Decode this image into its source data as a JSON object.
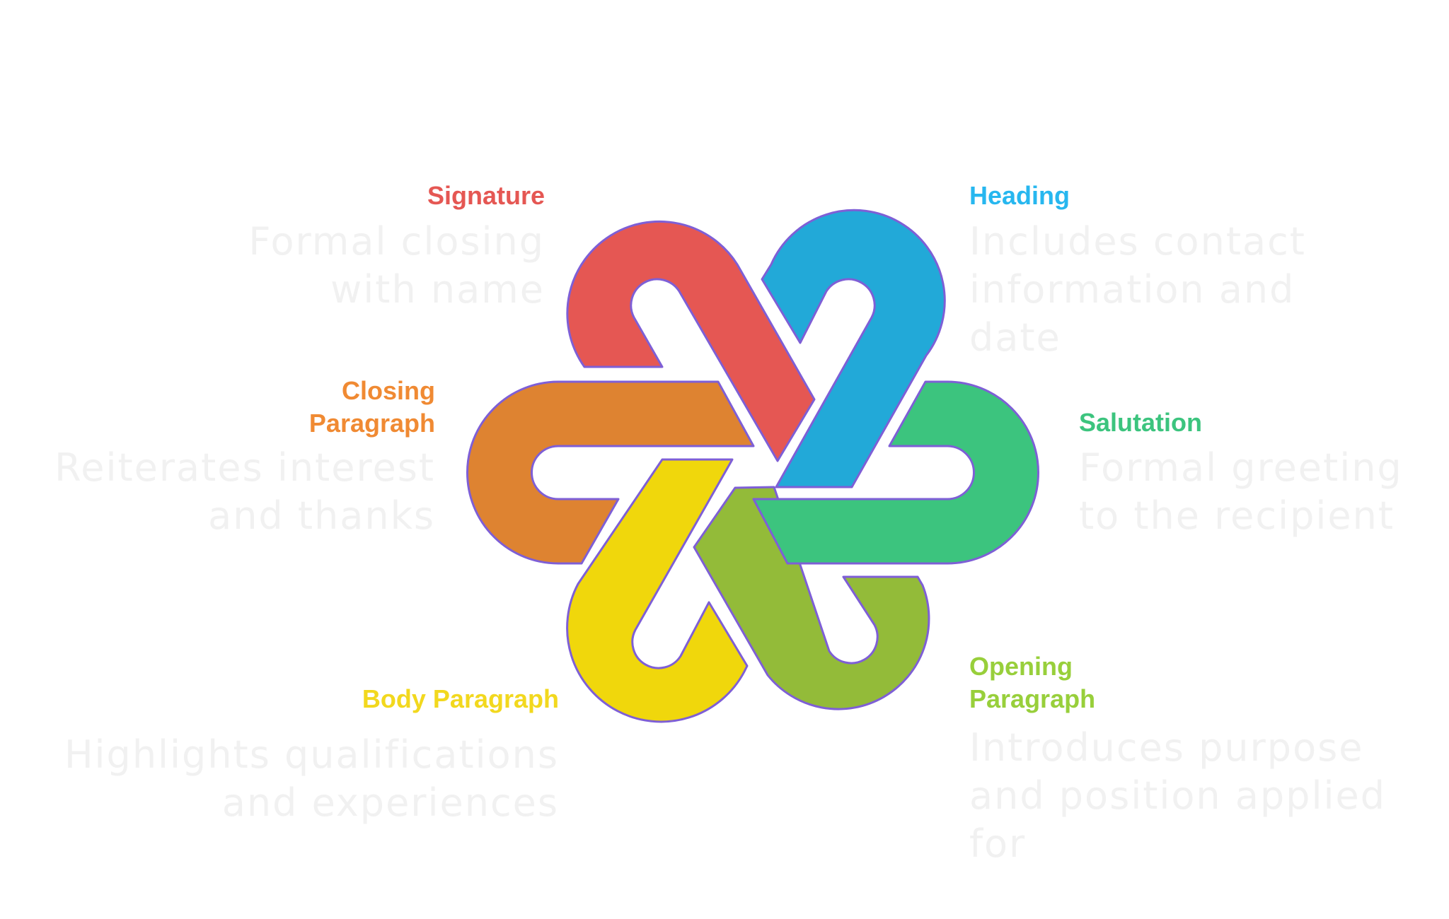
{
  "segments": {
    "signature": {
      "title": "Signature",
      "description": [
        "Formal closing",
        "with name"
      ],
      "color": "#E55753"
    },
    "heading": {
      "title": "Heading",
      "description": [
        "Includes contact",
        "information and",
        "date"
      ],
      "color": "#22A9D8",
      "title_color": "#27B7EF"
    },
    "closing_paragraph": {
      "title": [
        "Closing",
        "Paragraph"
      ],
      "description": [
        "Reiterates interest",
        "and thanks"
      ],
      "color": "#DE8331",
      "title_color": "#F08A33"
    },
    "salutation": {
      "title": "Salutation",
      "description": [
        "Formal greeting",
        "to the recipient"
      ],
      "color": "#3CC47E"
    },
    "body_paragraph": {
      "title": "Body Paragraph",
      "description": [
        "Highlights qualifications",
        "and experiences"
      ],
      "color": "#F0D70C",
      "title_color": "#F2D81E"
    },
    "opening_paragraph": {
      "title": [
        "Opening",
        "Paragraph"
      ],
      "description": [
        "Introduces purpose",
        "and position applied",
        "for"
      ],
      "color": "#93BB39",
      "title_color": "#98CF3B"
    }
  },
  "outline_color": "#7E5FD6"
}
